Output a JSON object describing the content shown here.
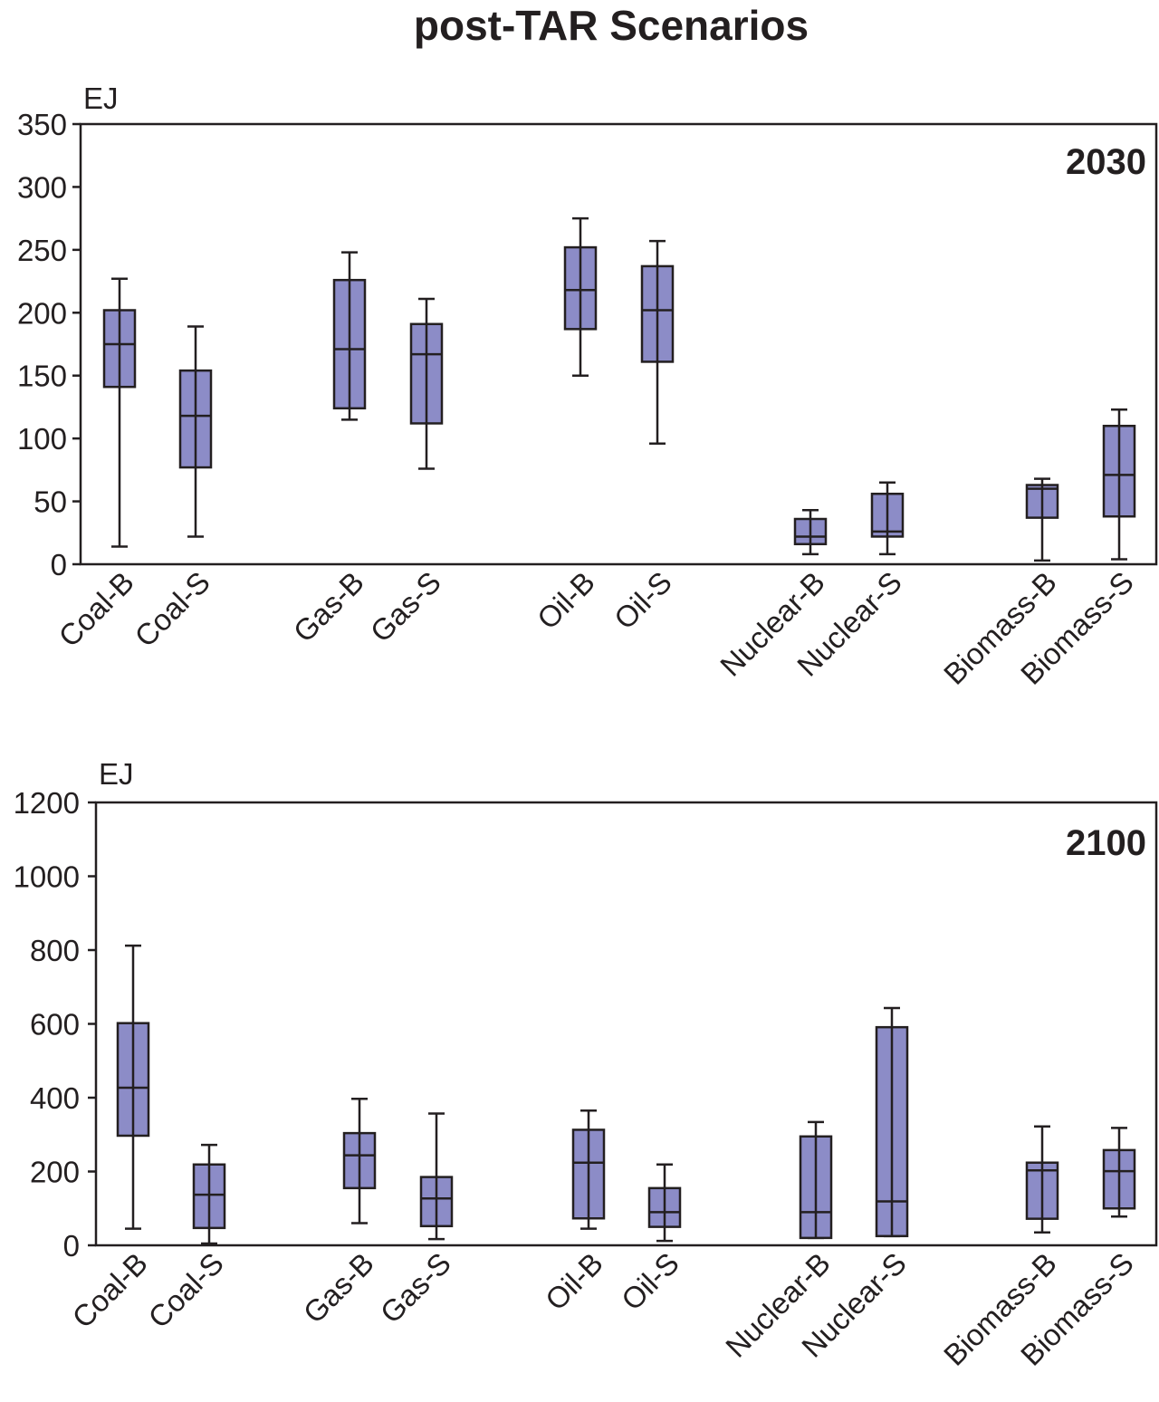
{
  "title": "post-TAR Scenarios",
  "colors": {
    "box_fill": "#8c8cc7",
    "ink": "#231f20"
  },
  "chart_data": [
    {
      "type": "boxplot",
      "panel_label": "2030",
      "ylabel": "EJ",
      "ylim": [
        0,
        350
      ],
      "yticks": [
        "0",
        "50",
        "100",
        "150",
        "200",
        "250",
        "300",
        "350"
      ],
      "grid": false,
      "categories": [
        "Coal-B",
        "Coal-S",
        "Gas-B",
        "Gas-S",
        "Oil-B",
        "Oil-S",
        "Nuclear-B",
        "Nuclear-S",
        "Biomass-B",
        "Biomass-S"
      ],
      "boxes": [
        {
          "min": 14,
          "q1": 141,
          "median": 175,
          "q3": 202,
          "max": 227
        },
        {
          "min": 22,
          "q1": 77,
          "median": 118,
          "q3": 154,
          "max": 189
        },
        {
          "min": 115,
          "q1": 124,
          "median": 171,
          "q3": 226,
          "max": 248
        },
        {
          "min": 76,
          "q1": 112,
          "median": 167,
          "q3": 191,
          "max": 211
        },
        {
          "min": 150,
          "q1": 187,
          "median": 218,
          "q3": 252,
          "max": 275
        },
        {
          "min": 96,
          "q1": 161,
          "median": 202,
          "q3": 237,
          "max": 257
        },
        {
          "min": 8,
          "q1": 16,
          "median": 22,
          "q3": 36,
          "max": 43
        },
        {
          "min": 8,
          "q1": 22,
          "median": 26,
          "q3": 56,
          "max": 65
        },
        {
          "min": 3,
          "q1": 37,
          "median": 60,
          "q3": 63,
          "max": 68
        },
        {
          "min": 4,
          "q1": 38,
          "median": 71,
          "q3": 110,
          "max": 123
        }
      ]
    },
    {
      "type": "boxplot",
      "panel_label": "2100",
      "ylabel": "EJ",
      "ylim": [
        0,
        1200
      ],
      "yticks": [
        "0",
        "200",
        "400",
        "600",
        "800",
        "1000",
        "1200"
      ],
      "grid": false,
      "categories": [
        "Coal-B",
        "Coal-S",
        "Gas-B",
        "Gas-S",
        "Oil-B",
        "Oil-S",
        "Nuclear-B",
        "Nuclear-S",
        "Biomass-B",
        "Biomass-S"
      ],
      "boxes": [
        {
          "min": 45,
          "q1": 297,
          "median": 427,
          "q3": 602,
          "max": 812
        },
        {
          "min": 5,
          "q1": 47,
          "median": 137,
          "q3": 219,
          "max": 272
        },
        {
          "min": 60,
          "q1": 155,
          "median": 244,
          "q3": 304,
          "max": 397
        },
        {
          "min": 17,
          "q1": 52,
          "median": 127,
          "q3": 185,
          "max": 357
        },
        {
          "min": 45,
          "q1": 73,
          "median": 224,
          "q3": 313,
          "max": 365
        },
        {
          "min": 12,
          "q1": 50,
          "median": 90,
          "q3": 155,
          "max": 219
        },
        {
          "min": 20,
          "q1": 20,
          "median": 90,
          "q3": 295,
          "max": 334
        },
        {
          "min": 25,
          "q1": 25,
          "median": 119,
          "q3": 591,
          "max": 643
        },
        {
          "min": 35,
          "q1": 72,
          "median": 203,
          "q3": 224,
          "max": 322
        },
        {
          "min": 78,
          "q1": 100,
          "median": 201,
          "q3": 258,
          "max": 318
        }
      ]
    }
  ]
}
